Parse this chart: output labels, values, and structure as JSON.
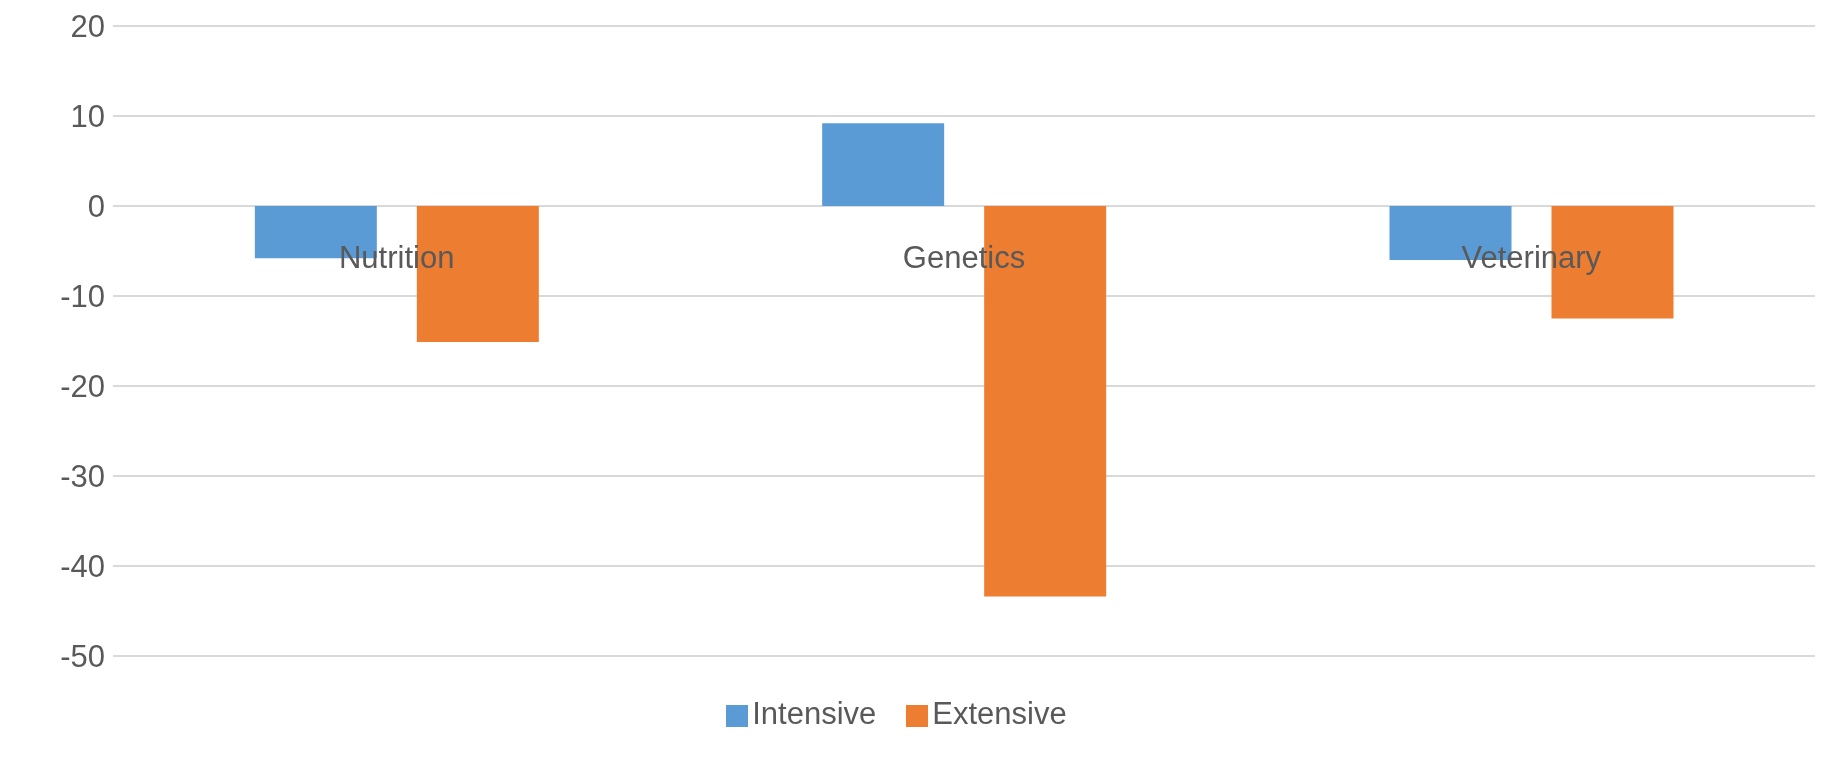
{
  "chart_data": {
    "type": "bar",
    "categories": [
      "Nutrition",
      "Genetics",
      "Veterinary"
    ],
    "series": [
      {
        "name": "Intensive",
        "color": "#5b9bd5",
        "values": [
          -5.8,
          9.2,
          -6.0
        ]
      },
      {
        "name": "Extensive",
        "color": "#ed7d31",
        "values": [
          -15.1,
          -43.4,
          -12.5
        ]
      }
    ],
    "ylim": [
      -50,
      20
    ],
    "yticks": [
      -50,
      -40,
      -30,
      -20,
      -10,
      0,
      10,
      20
    ],
    "grid": "y",
    "legend": "bottom"
  }
}
